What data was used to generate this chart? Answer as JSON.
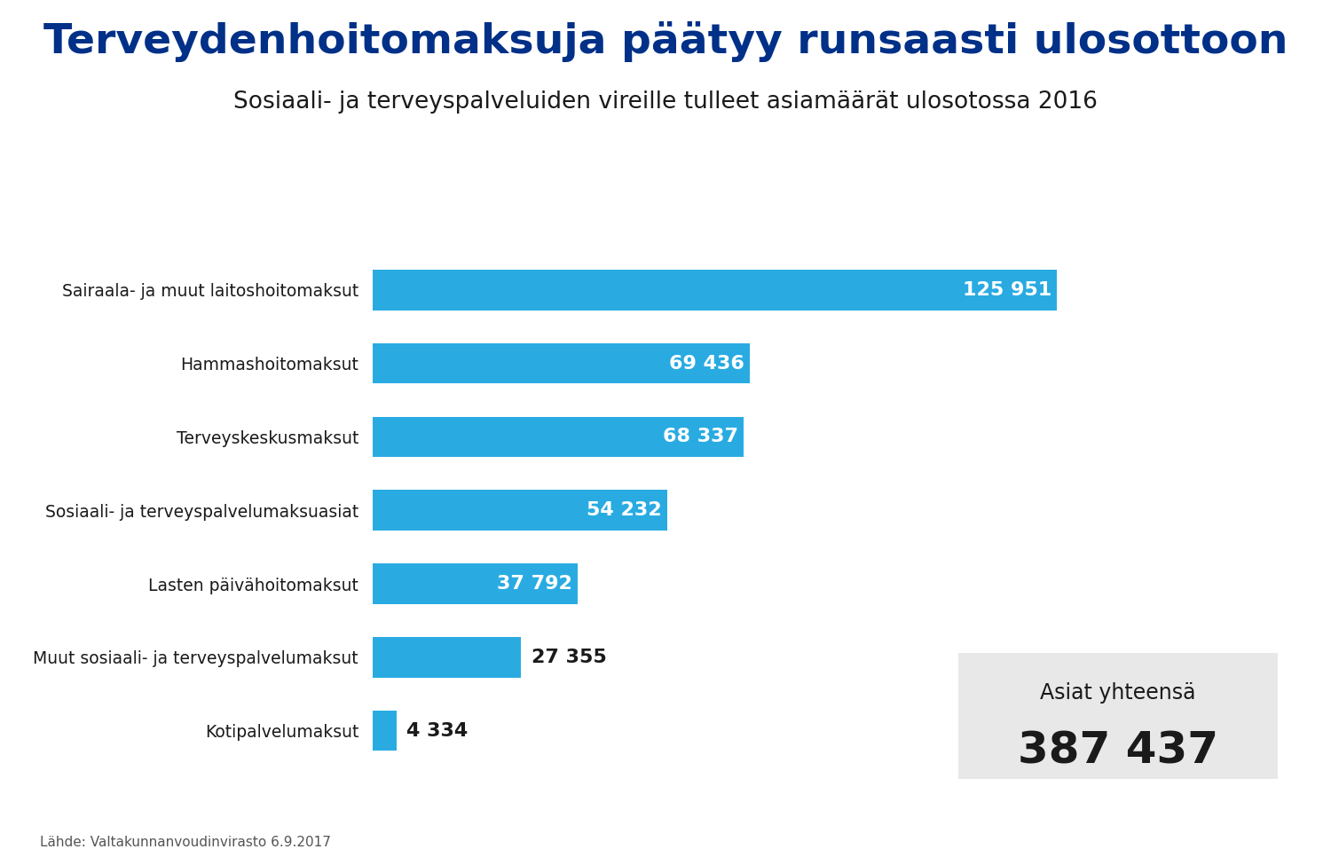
{
  "title": "Terveydenhoitomaksuja päätyy runsaasti ulosottoon",
  "subtitle": "Sosiaali- ja terveyspalveluiden vireille tulleet asiamäärät ulosotossa 2016",
  "categories": [
    "Sairaala- ja muut laitoshoitomaksut",
    "Hammashoitomaksut",
    "Terveyskeskusmaksut",
    "Sosiaali- ja terveyspalvelumaksuasiat",
    "Lasten päivähoitomaksut",
    "Muut sosiaali- ja terveyspalvelumaksut",
    "Kotipalvelumaksut"
  ],
  "values": [
    125951,
    69436,
    68337,
    54232,
    37792,
    27355,
    4334
  ],
  "labels": [
    "125 951",
    "69 436",
    "68 337",
    "54 232",
    "37 792",
    "27 355",
    "4 334"
  ],
  "bar_color": "#29ABE2",
  "title_color": "#003087",
  "subtitle_color": "#1a1a1a",
  "label_color_inside": "#ffffff",
  "label_color_outside": "#1a1a1a",
  "source_text": "Lähde: Valtakunnanvoudinvirasto 6.9.2017",
  "total_label": "Asiat yhteensä",
  "total_value": "387 437",
  "background_color": "#ffffff",
  "box_bg_color": "#e8e8e8",
  "inside_threshold": 35000
}
